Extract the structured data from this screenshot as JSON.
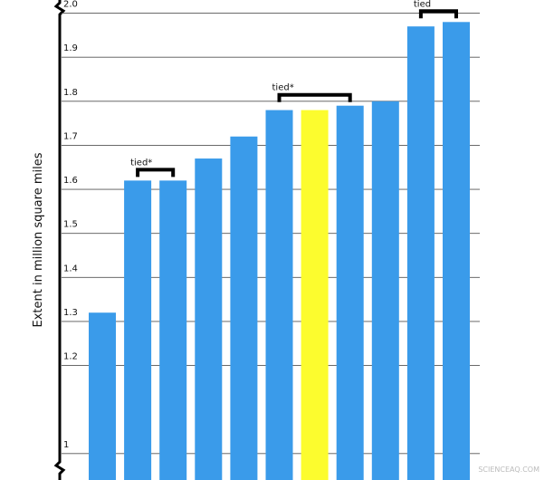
{
  "chart_data": {
    "type": "bar",
    "y_label": "Extent in million square miles",
    "categories": [
      null,
      null,
      null,
      null,
      null,
      null,
      null,
      null,
      null,
      null,
      null
    ],
    "values": [
      1.32,
      1.62,
      1.62,
      1.67,
      1.72,
      1.78,
      1.78,
      1.79,
      1.8,
      1.97,
      1.98
    ],
    "colors": [
      "#3a9bea",
      "#3a9bea",
      "#3a9bea",
      "#3a9bea",
      "#3a9bea",
      "#3a9bea",
      "#fcfc2e",
      "#3a9bea",
      "#3a9bea",
      "#3a9bea",
      "#3a9bea"
    ],
    "ylim": [
      0.94,
      2.03
    ],
    "yticks": [
      1,
      1.2,
      1.3,
      1.4,
      1.5,
      1.6,
      1.7,
      1.8,
      1.9,
      {
        "value": 2.0,
        "label": "2.0"
      }
    ],
    "grid": true,
    "annotations": [
      "tied*",
      "tied*",
      "tied"
    ],
    "watermark": "SCIENCEAQ.COM"
  }
}
